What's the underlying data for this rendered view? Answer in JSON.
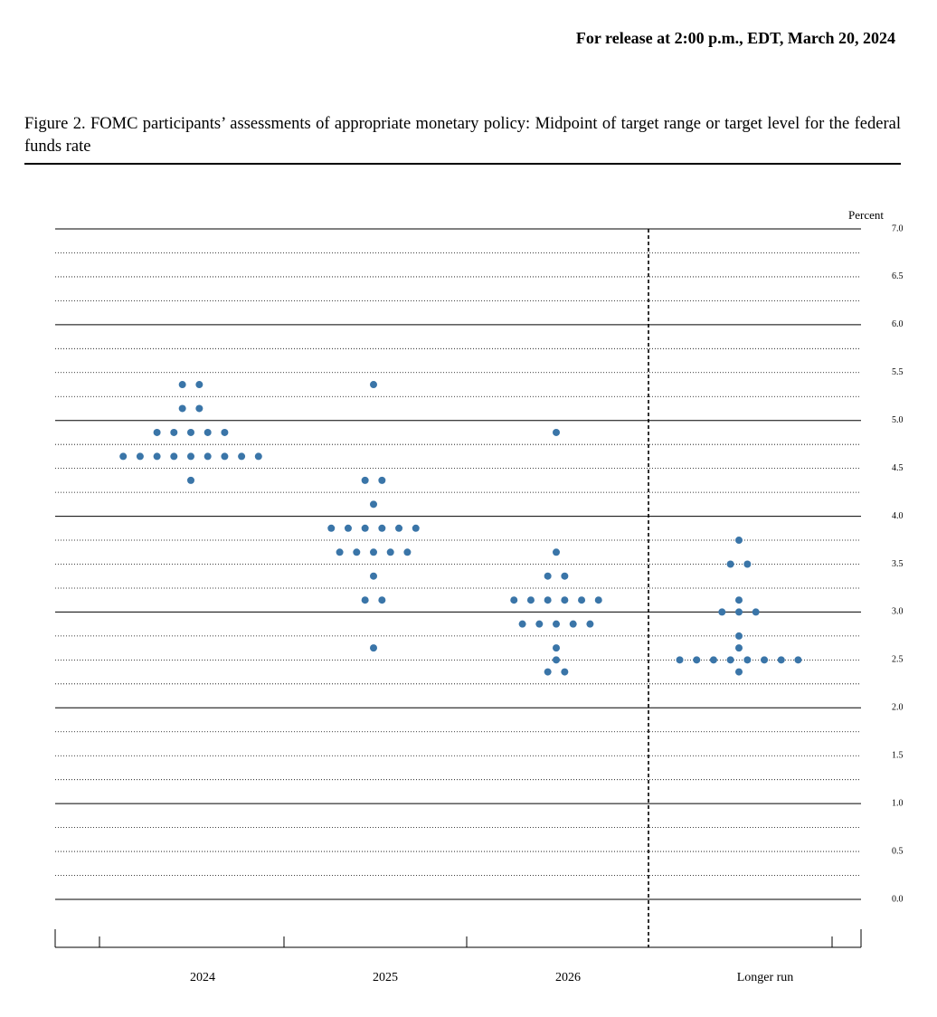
{
  "header": {
    "release": "For release at 2:00 p.m., EDT, March 20, 2024"
  },
  "chart_data": {
    "type": "dot",
    "title": "Figure 2.  FOMC participants’ assessments of appropriate monetary policy: Midpoint of target range or target level for the federal funds rate",
    "y_label": "Percent",
    "categories": [
      "2024",
      "2025",
      "2026",
      "Longer run"
    ],
    "values": [
      [
        5.375,
        5.125,
        4.875,
        4.625,
        4.375
      ],
      [
        5.375,
        4.375,
        4.125,
        3.875,
        3.625,
        3.375,
        3.125,
        2.625
      ],
      [
        4.875,
        3.625,
        3.375,
        3.125,
        2.875,
        2.625,
        2.5,
        2.375
      ],
      [
        3.75,
        3.5,
        3.125,
        3.0,
        2.75,
        2.625,
        2.5,
        2.375
      ]
    ],
    "counts": [
      [
        2,
        2,
        5,
        9,
        1
      ],
      [
        1,
        2,
        1,
        6,
        5,
        1,
        2,
        1
      ],
      [
        1,
        1,
        2,
        6,
        5,
        1,
        1,
        2
      ],
      [
        1,
        2,
        1,
        3,
        1,
        1,
        8,
        1
      ]
    ],
    "color": "#3a75a8",
    "ylim": [
      0,
      7
    ],
    "yticks": [
      {
        "value": 0,
        "label": "0.0"
      },
      0.5,
      {
        "value": 1,
        "label": "1.0"
      },
      1.5,
      {
        "value": 2,
        "label": "2.0"
      },
      2.5,
      {
        "value": 3,
        "label": "3.0"
      },
      3.5,
      {
        "value": 4,
        "label": "4.0"
      },
      4.5,
      {
        "value": 5,
        "label": "5.0"
      },
      5.5,
      {
        "value": 6,
        "label": "6.0"
      },
      6.5,
      {
        "value": 7,
        "label": "7.0"
      }
    ],
    "yminorticks": [
      0.25,
      0.75,
      1.25,
      1.75,
      2.25,
      2.75,
      3.25,
      3.75,
      4.25,
      4.75,
      5.25,
      5.75,
      6.25,
      6.75
    ],
    "grid": true
  }
}
